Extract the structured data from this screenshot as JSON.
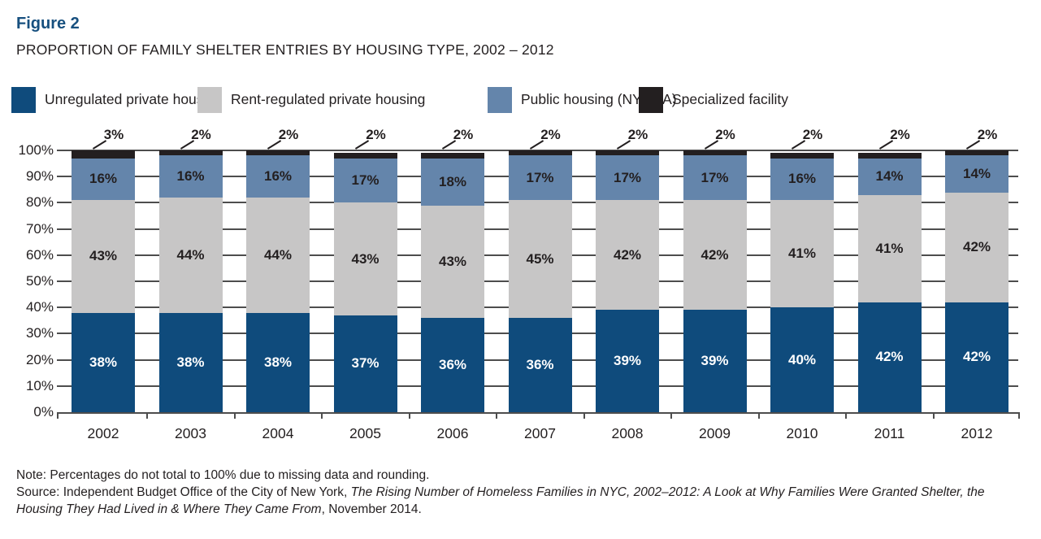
{
  "figure": {
    "label": "Figure 2",
    "title": "PROPORTION OF FAMILY SHELTER ENTRIES BY HOUSING TYPE, 2002 – 2012"
  },
  "chart_data": {
    "type": "bar",
    "stacked": true,
    "title": "PROPORTION OF FAMILY SHELTER ENTRIES BY HOUSING TYPE, 2002 – 2012",
    "categories": [
      "2002",
      "2003",
      "2004",
      "2005",
      "2006",
      "2007",
      "2008",
      "2009",
      "2010",
      "2011",
      "2012"
    ],
    "series": [
      {
        "name": "Unregulated private housing",
        "color": "#0f4b7c",
        "label_color": "#ffffff",
        "values": [
          38,
          38,
          38,
          37,
          36,
          36,
          39,
          39,
          40,
          42,
          42
        ]
      },
      {
        "name": "Rent-regulated private housing",
        "color": "#c7c6c6",
        "label_color": "#231f20",
        "values": [
          43,
          44,
          44,
          43,
          43,
          45,
          42,
          42,
          41,
          41,
          42
        ]
      },
      {
        "name": "Public housing (NYCHA)",
        "color": "#6485ab",
        "label_color": "#231f20",
        "values": [
          16,
          16,
          16,
          17,
          18,
          17,
          17,
          17,
          16,
          14,
          14
        ]
      },
      {
        "name": "Specialized facility",
        "color": "#231f20",
        "label_color": "#231f20",
        "values": [
          3,
          2,
          2,
          2,
          2,
          2,
          2,
          2,
          2,
          2,
          2
        ]
      }
    ],
    "value_suffix": "%",
    "y_ticks": [
      "0%",
      "10%",
      "20%",
      "30%",
      "40%",
      "50%",
      "60%",
      "70%",
      "80%",
      "90%",
      "100%"
    ],
    "ylim": [
      0,
      100
    ],
    "grid": true,
    "legend_position": "top"
  },
  "notes": {
    "note": "Note: Percentages do not total to 100% due to missing data and rounding.",
    "source_prefix": "Source: Independent Budget Office of the City of New York, ",
    "source_title_italic": "The Rising Number of Homeless Families in NYC, 2002–2012: A Look at Why Families Were Granted Shelter, the Housing They Had Lived in & Where They Came From",
    "source_suffix": ", November 2014."
  }
}
